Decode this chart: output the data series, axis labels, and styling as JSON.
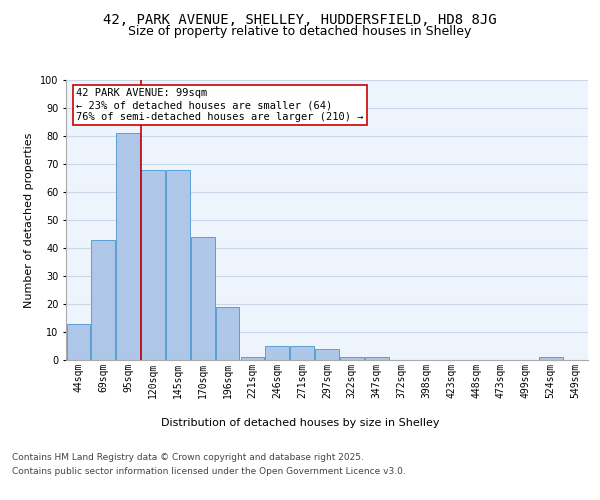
{
  "title_line1": "42, PARK AVENUE, SHELLEY, HUDDERSFIELD, HD8 8JG",
  "title_line2": "Size of property relative to detached houses in Shelley",
  "xlabel": "Distribution of detached houses by size in Shelley",
  "ylabel": "Number of detached properties",
  "categories": [
    "44sqm",
    "69sqm",
    "95sqm",
    "120sqm",
    "145sqm",
    "170sqm",
    "196sqm",
    "221sqm",
    "246sqm",
    "271sqm",
    "297sqm",
    "322sqm",
    "347sqm",
    "372sqm",
    "398sqm",
    "423sqm",
    "448sqm",
    "473sqm",
    "499sqm",
    "524sqm",
    "549sqm"
  ],
  "values": [
    13,
    43,
    81,
    68,
    68,
    44,
    19,
    1,
    5,
    5,
    4,
    1,
    1,
    0,
    0,
    0,
    0,
    0,
    0,
    1,
    0
  ],
  "bar_color": "#aec6e8",
  "bar_edge_color": "#5a9fd4",
  "redline_x": 2.5,
  "annotation_text": "42 PARK AVENUE: 99sqm\n← 23% of detached houses are smaller (64)\n76% of semi-detached houses are larger (210) →",
  "annotation_box_color": "#ffffff",
  "annotation_box_edge": "#cc0000",
  "annotation_text_color": "#000000",
  "redline_color": "#cc0000",
  "ylim": [
    0,
    100
  ],
  "yticks": [
    0,
    10,
    20,
    30,
    40,
    50,
    60,
    70,
    80,
    90,
    100
  ],
  "grid_color": "#c8d8e8",
  "background_color": "#eef4fb",
  "footer_line1": "Contains HM Land Registry data © Crown copyright and database right 2025.",
  "footer_line2": "Contains public sector information licensed under the Open Government Licence v3.0.",
  "title_fontsize": 10,
  "subtitle_fontsize": 9,
  "axis_label_fontsize": 8,
  "tick_fontsize": 7,
  "annotation_fontsize": 7.5,
  "footer_fontsize": 6.5
}
